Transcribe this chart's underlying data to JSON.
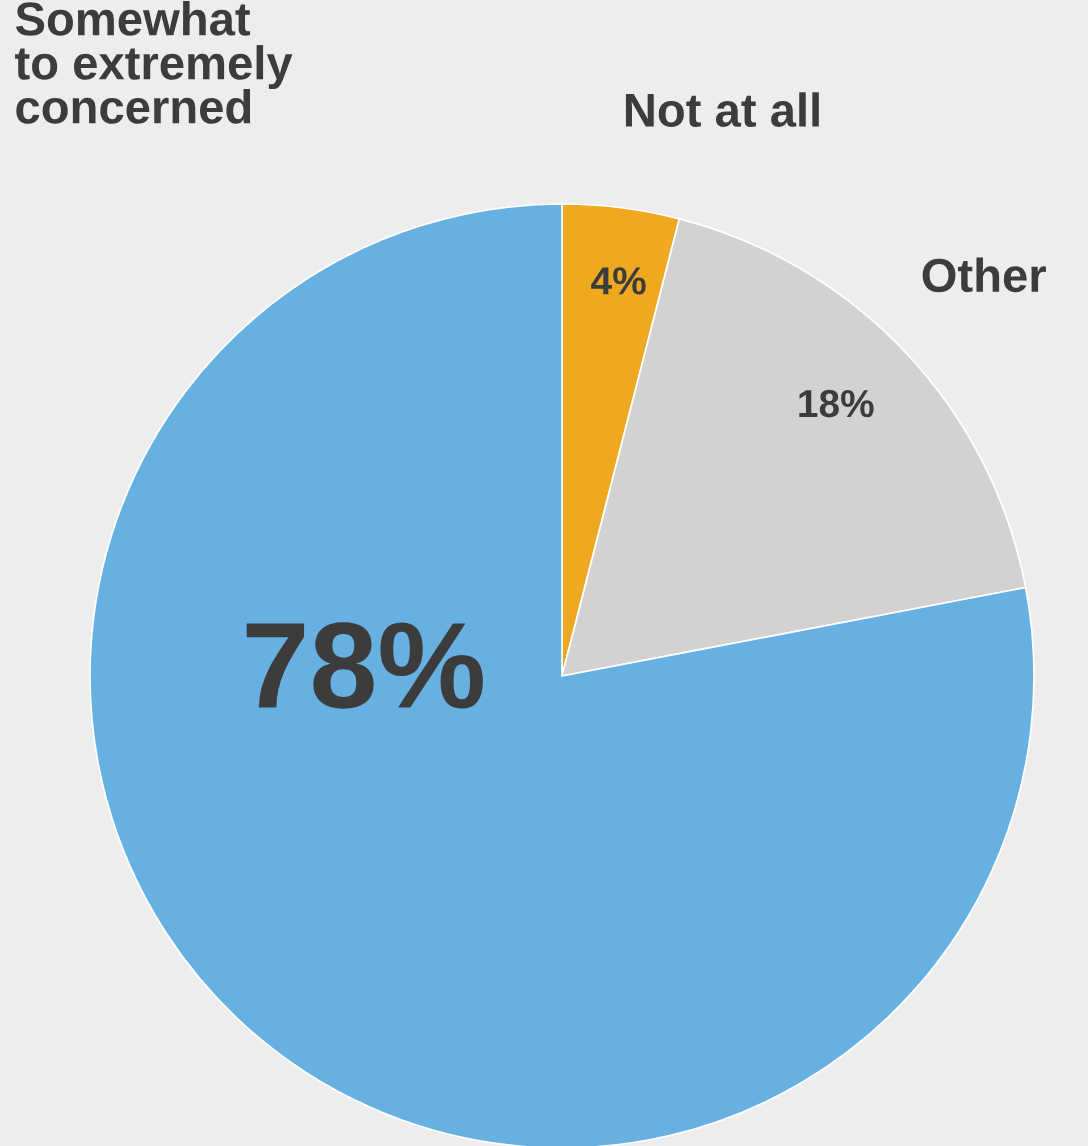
{
  "chart_data": {
    "type": "pie",
    "categories": [
      "Not at all",
      "Other",
      "Somewhat\nto extremely\nconcerned"
    ],
    "values": [
      4,
      18,
      78
    ],
    "colors": [
      "#eea921",
      "#d4d1d1",
      "#67b1e2"
    ],
    "value_labels": [
      "4%",
      "18%",
      "78%"
    ]
  }
}
